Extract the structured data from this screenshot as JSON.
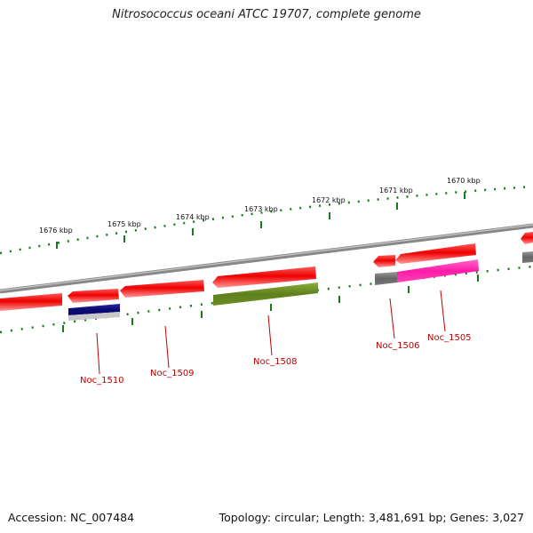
{
  "title": "Nitrosococcus oceani ATCC 19707, complete genome",
  "footer": {
    "accession": "Accession: NC_007484",
    "summary": "Topology: circular; Length: 3,481,691 bp; Genes: 3,027"
  },
  "colors": {
    "forward_gene": "#ee1111",
    "tick": "#1a7a1a",
    "backbone": "#888888",
    "label": "#c00000",
    "Noc_1510": "#0a0a80",
    "Noc_1508": "#6b8e23",
    "Noc_1506": "#777777",
    "Noc_1505": "#ff1aa8"
  },
  "scale_labels": [
    "1676 kbp",
    "1675 kbp",
    "1674 kbp",
    "1673 kbp",
    "1672 kbp",
    "1671 kbp",
    "1670 kbp"
  ],
  "gene_labels": [
    "Noc_1510",
    "Noc_1509",
    "Noc_1508",
    "Noc_1506",
    "Noc_1505"
  ]
}
